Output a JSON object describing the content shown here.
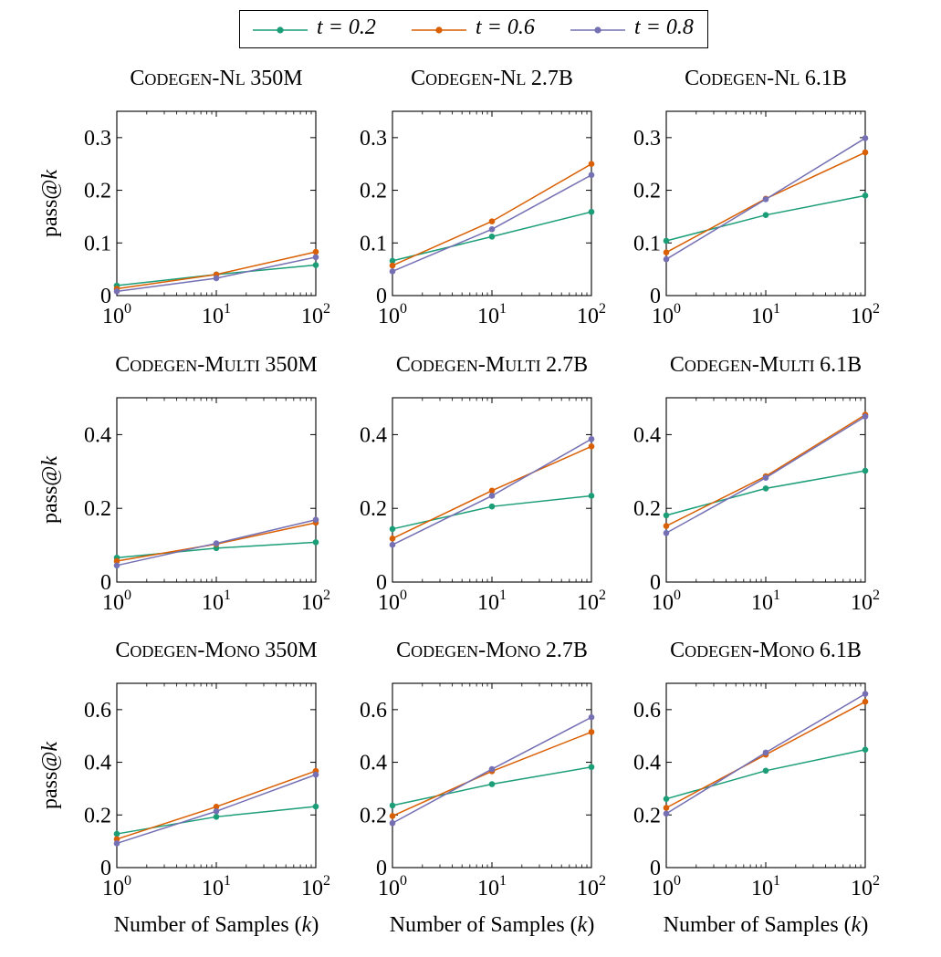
{
  "legend": [
    {
      "label": "t = 0.2",
      "color": "#1b9e77"
    },
    {
      "label": "t = 0.6",
      "color": "#d95f02"
    },
    {
      "label": "t = 0.8",
      "color": "#7570b3"
    }
  ],
  "chart_data": [
    {
      "type": "line",
      "title": "CODEGEN-NL 350M",
      "ylabel": "pass@k",
      "xlabel": "",
      "x": [
        1,
        10,
        100
      ],
      "xscale": "log",
      "xlim": [
        1,
        100
      ],
      "ylim": [
        0,
        0.35
      ],
      "yticks": [
        0,
        0.1,
        0.2,
        0.3
      ],
      "ytick_labels": [
        "0",
        "0.1",
        "0.2",
        "0.3"
      ],
      "series": [
        {
          "name": "t = 0.2",
          "values": [
            0.019,
            0.04,
            0.058
          ]
        },
        {
          "name": "t = 0.6",
          "values": [
            0.013,
            0.04,
            0.083
          ]
        },
        {
          "name": "t = 0.8",
          "values": [
            0.008,
            0.033,
            0.073
          ]
        }
      ]
    },
    {
      "type": "line",
      "title": "CODEGEN-NL 2.7B",
      "ylabel": "",
      "xlabel": "",
      "x": [
        1,
        10,
        100
      ],
      "xscale": "log",
      "xlim": [
        1,
        100
      ],
      "ylim": [
        0,
        0.35
      ],
      "yticks": [
        0,
        0.1,
        0.2,
        0.3
      ],
      "ytick_labels": [
        "0",
        "0.1",
        "0.2",
        "0.3"
      ],
      "series": [
        {
          "name": "t = 0.2",
          "values": [
            0.066,
            0.112,
            0.159
          ]
        },
        {
          "name": "t = 0.6",
          "values": [
            0.057,
            0.141,
            0.25
          ]
        },
        {
          "name": "t = 0.8",
          "values": [
            0.046,
            0.126,
            0.229
          ]
        }
      ]
    },
    {
      "type": "line",
      "title": "CODEGEN-NL 6.1B",
      "ylabel": "",
      "xlabel": "",
      "x": [
        1,
        10,
        100
      ],
      "xscale": "log",
      "xlim": [
        1,
        100
      ],
      "ylim": [
        0,
        0.35
      ],
      "yticks": [
        0,
        0.1,
        0.2,
        0.3
      ],
      "ytick_labels": [
        "0",
        "0.1",
        "0.2",
        "0.3"
      ],
      "series": [
        {
          "name": "t = 0.2",
          "values": [
            0.104,
            0.153,
            0.19
          ]
        },
        {
          "name": "t = 0.6",
          "values": [
            0.082,
            0.184,
            0.272
          ]
        },
        {
          "name": "t = 0.8",
          "values": [
            0.069,
            0.183,
            0.299
          ]
        }
      ]
    },
    {
      "type": "line",
      "title": "CODEGEN-MULTI 350M",
      "ylabel": "pass@k",
      "xlabel": "",
      "x": [
        1,
        10,
        100
      ],
      "xscale": "log",
      "xlim": [
        1,
        100
      ],
      "ylim": [
        0,
        0.5
      ],
      "yticks": [
        0,
        0.2,
        0.4
      ],
      "ytick_labels": [
        "0",
        "0.2",
        "0.4"
      ],
      "series": [
        {
          "name": "t = 0.2",
          "values": [
            0.066,
            0.092,
            0.108
          ]
        },
        {
          "name": "t = 0.6",
          "values": [
            0.057,
            0.103,
            0.161
          ]
        },
        {
          "name": "t = 0.8",
          "values": [
            0.045,
            0.105,
            0.169
          ]
        }
      ]
    },
    {
      "type": "line",
      "title": "CODEGEN-MULTI 2.7B",
      "ylabel": "",
      "xlabel": "",
      "x": [
        1,
        10,
        100
      ],
      "xscale": "log",
      "xlim": [
        1,
        100
      ],
      "ylim": [
        0,
        0.5
      ],
      "yticks": [
        0,
        0.2,
        0.4
      ],
      "ytick_labels": [
        "0",
        "0.2",
        "0.4"
      ],
      "series": [
        {
          "name": "t = 0.2",
          "values": [
            0.144,
            0.205,
            0.234
          ]
        },
        {
          "name": "t = 0.6",
          "values": [
            0.118,
            0.248,
            0.368
          ]
        },
        {
          "name": "t = 0.8",
          "values": [
            0.101,
            0.234,
            0.388
          ]
        }
      ]
    },
    {
      "type": "line",
      "title": "CODEGEN-MULTI 6.1B",
      "ylabel": "",
      "xlabel": "",
      "x": [
        1,
        10,
        100
      ],
      "xscale": "log",
      "xlim": [
        1,
        100
      ],
      "ylim": [
        0,
        0.5
      ],
      "yticks": [
        0,
        0.2,
        0.4
      ],
      "ytick_labels": [
        "0",
        "0.2",
        "0.4"
      ],
      "series": [
        {
          "name": "t = 0.2",
          "values": [
            0.181,
            0.254,
            0.302
          ]
        },
        {
          "name": "t = 0.6",
          "values": [
            0.152,
            0.287,
            0.454
          ]
        },
        {
          "name": "t = 0.8",
          "values": [
            0.133,
            0.283,
            0.449
          ]
        }
      ]
    },
    {
      "type": "line",
      "title": "CODEGEN-MONO 350M",
      "ylabel": "pass@k",
      "xlabel": "Number of Samples (k)",
      "x": [
        1,
        10,
        100
      ],
      "xscale": "log",
      "xlim": [
        1,
        100
      ],
      "ylim": [
        0,
        0.7
      ],
      "yticks": [
        0,
        0.2,
        0.4,
        0.6
      ],
      "ytick_labels": [
        "0",
        "0.2",
        "0.4",
        "0.6"
      ],
      "series": [
        {
          "name": "t = 0.2",
          "values": [
            0.128,
            0.193,
            0.232
          ]
        },
        {
          "name": "t = 0.6",
          "values": [
            0.108,
            0.231,
            0.367
          ]
        },
        {
          "name": "t = 0.8",
          "values": [
            0.092,
            0.214,
            0.353
          ]
        }
      ]
    },
    {
      "type": "line",
      "title": "CODEGEN-MONO 2.7B",
      "ylabel": "",
      "xlabel": "Number of Samples (k)",
      "x": [
        1,
        10,
        100
      ],
      "xscale": "log",
      "xlim": [
        1,
        100
      ],
      "ylim": [
        0,
        0.7
      ],
      "yticks": [
        0,
        0.2,
        0.4,
        0.6
      ],
      "ytick_labels": [
        "0",
        "0.2",
        "0.4",
        "0.6"
      ],
      "series": [
        {
          "name": "t = 0.2",
          "values": [
            0.236,
            0.317,
            0.382
          ]
        },
        {
          "name": "t = 0.6",
          "values": [
            0.196,
            0.366,
            0.515
          ]
        },
        {
          "name": "t = 0.8",
          "values": [
            0.169,
            0.374,
            0.571
          ]
        }
      ]
    },
    {
      "type": "line",
      "title": "CODEGEN-MONO 6.1B",
      "ylabel": "",
      "xlabel": "Number of Samples (k)",
      "x": [
        1,
        10,
        100
      ],
      "xscale": "log",
      "xlim": [
        1,
        100
      ],
      "ylim": [
        0,
        0.7
      ],
      "yticks": [
        0,
        0.2,
        0.4,
        0.6
      ],
      "ytick_labels": [
        "0",
        "0.2",
        "0.4",
        "0.6"
      ],
      "series": [
        {
          "name": "t = 0.2",
          "values": [
            0.261,
            0.368,
            0.448
          ]
        },
        {
          "name": "t = 0.6",
          "values": [
            0.227,
            0.429,
            0.63
          ]
        },
        {
          "name": "t = 0.8",
          "values": [
            0.205,
            0.437,
            0.66
          ]
        }
      ]
    }
  ]
}
